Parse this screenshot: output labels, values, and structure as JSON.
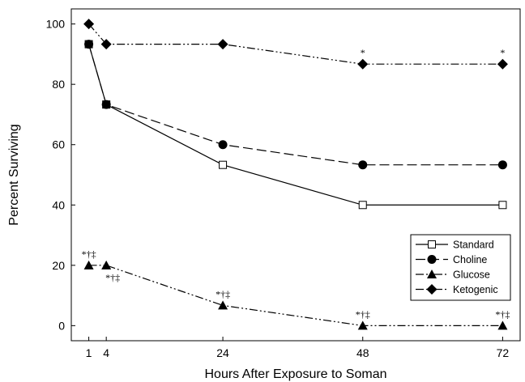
{
  "chart_data": {
    "type": "line",
    "xlabel": "Hours After Exposure to Soman",
    "ylabel": "Percent Surviving",
    "x": [
      1,
      4,
      24,
      48,
      72
    ],
    "xticks": [
      1,
      4,
      24,
      48,
      72
    ],
    "yticks": [
      0,
      20,
      40,
      60,
      80,
      100
    ],
    "xlim": [
      -2,
      75
    ],
    "ylim": [
      -5,
      105
    ],
    "legend_position": "bottom-right",
    "series": [
      {
        "name": "Standard",
        "marker": "open-square",
        "line_style": "solid",
        "values": [
          93.3,
          73.3,
          53.3,
          40,
          40
        ]
      },
      {
        "name": "Choline",
        "marker": "filled-circle",
        "line_style": "dashed",
        "values": [
          93.3,
          73.3,
          60,
          53.3,
          53.3
        ]
      },
      {
        "name": "Glucose",
        "marker": "filled-triangle",
        "line_style": "dash-dot-dot",
        "values": [
          20,
          20,
          6.7,
          0,
          0
        ]
      },
      {
        "name": "Ketogenic",
        "marker": "filled-diamond",
        "line_style": "dash-dot-dot",
        "values": [
          100,
          93.3,
          93.3,
          86.7,
          86.7
        ]
      }
    ],
    "annotations": [
      {
        "text": "*†‡",
        "x": 1,
        "y": 20,
        "anchor": "above"
      },
      {
        "text": "*†‡",
        "x": 4,
        "y": 20,
        "anchor": "below-right"
      },
      {
        "text": "*†‡",
        "x": 24,
        "y": 6.7,
        "anchor": "above"
      },
      {
        "text": "*†‡",
        "x": 48,
        "y": 0,
        "anchor": "above"
      },
      {
        "text": "*†‡",
        "x": 72,
        "y": 0,
        "anchor": "above"
      },
      {
        "text": "*",
        "x": 48,
        "y": 86.7,
        "anchor": "above"
      },
      {
        "text": "*",
        "x": 72,
        "y": 86.7,
        "anchor": "above"
      }
    ]
  }
}
